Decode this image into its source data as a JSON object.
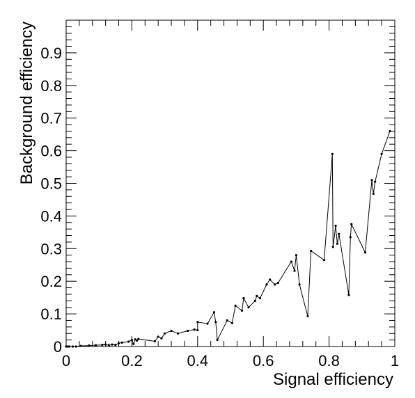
{
  "chart_data": {
    "type": "line",
    "xlabel": "Signal efficiency",
    "ylabel": "Background efficiency",
    "xlim": [
      0,
      1
    ],
    "ylim": [
      0,
      1
    ],
    "x_ticks": [
      {
        "value": 0,
        "label": "0"
      },
      {
        "value": 0.2,
        "label": "0.2"
      },
      {
        "value": 0.4,
        "label": "0.4"
      },
      {
        "value": 0.6,
        "label": "0.6"
      },
      {
        "value": 0.8,
        "label": "0.8"
      },
      {
        "value": 1,
        "label": "1"
      }
    ],
    "y_ticks": [
      {
        "value": 0,
        "label": "0"
      },
      {
        "value": 0.1,
        "label": "0.1"
      },
      {
        "value": 0.2,
        "label": "0.2"
      },
      {
        "value": 0.3,
        "label": "0.3"
      },
      {
        "value": 0.4,
        "label": "0.4"
      },
      {
        "value": 0.5,
        "label": "0.5"
      },
      {
        "value": 0.6,
        "label": "0.6"
      },
      {
        "value": 0.7,
        "label": "0.7"
      },
      {
        "value": 0.8,
        "label": "0.8"
      },
      {
        "value": 0.9,
        "label": "0.9"
      }
    ],
    "grid": false,
    "line_color": "#000000",
    "series": [
      {
        "x": [
          0.0,
          0.005,
          0.01,
          0.02,
          0.03,
          0.045,
          0.07,
          0.09,
          0.11,
          0.12,
          0.13,
          0.14,
          0.15,
          0.16,
          0.17,
          0.19,
          0.2,
          0.205,
          0.21,
          0.215,
          0.22,
          0.27,
          0.28,
          0.29,
          0.3,
          0.32,
          0.34,
          0.37,
          0.39,
          0.4,
          0.4,
          0.43,
          0.45,
          0.455,
          0.46,
          0.49,
          0.505,
          0.515,
          0.535,
          0.54,
          0.555,
          0.575,
          0.58,
          0.59,
          0.61,
          0.62,
          0.635,
          0.645,
          0.685,
          0.695,
          0.7,
          0.71,
          0.735,
          0.745,
          0.785,
          0.81,
          0.812,
          0.82,
          0.825,
          0.83,
          0.86,
          0.865,
          0.868,
          0.91,
          0.93,
          0.935,
          0.94,
          0.96,
          0.985
        ],
        "y": [
          0.0,
          0.0,
          0.0,
          0.0,
          0.0,
          0.002,
          0.003,
          0.004,
          0.005,
          0.006,
          0.004,
          0.006,
          0.005,
          0.01,
          0.012,
          0.015,
          0.02,
          0.008,
          0.022,
          0.018,
          0.023,
          0.016,
          0.03,
          0.025,
          0.04,
          0.048,
          0.04,
          0.048,
          0.052,
          0.05,
          0.075,
          0.07,
          0.105,
          0.075,
          0.02,
          0.08,
          0.072,
          0.125,
          0.11,
          0.148,
          0.12,
          0.14,
          0.155,
          0.148,
          0.19,
          0.205,
          0.19,
          0.195,
          0.26,
          0.232,
          0.28,
          0.19,
          0.093,
          0.293,
          0.265,
          0.59,
          0.305,
          0.37,
          0.315,
          0.345,
          0.158,
          0.335,
          0.375,
          0.288,
          0.51,
          0.468,
          0.505,
          0.59,
          0.66
        ]
      }
    ]
  }
}
